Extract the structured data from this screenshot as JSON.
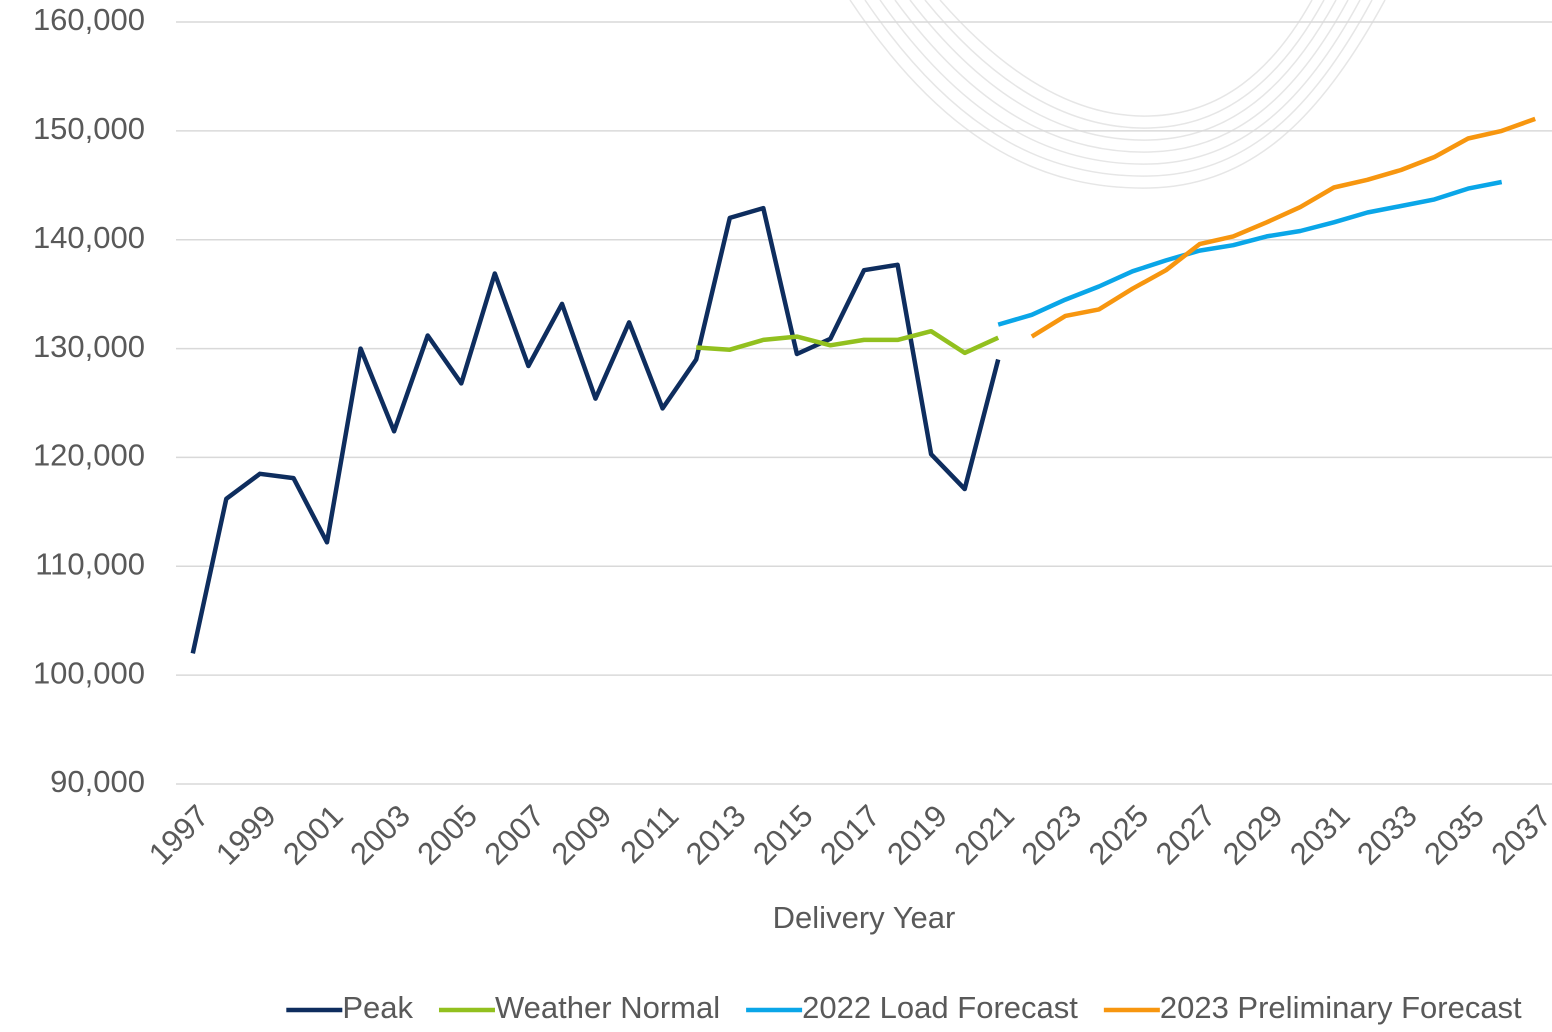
{
  "chart_data": {
    "type": "line",
    "x_label": "Delivery Year",
    "x": [
      1997,
      1998,
      1999,
      2000,
      2001,
      2002,
      2003,
      2004,
      2005,
      2006,
      2007,
      2008,
      2009,
      2010,
      2011,
      2012,
      2013,
      2014,
      2015,
      2016,
      2017,
      2018,
      2019,
      2020,
      2021,
      2022,
      2023,
      2024,
      2025,
      2026,
      2027,
      2028,
      2029,
      2030,
      2031,
      2032,
      2033,
      2034,
      2035,
      2036,
      2037
    ],
    "xlim": [
      1996.5,
      2037.5
    ],
    "xticks": [
      1997,
      1999,
      2001,
      2003,
      2005,
      2007,
      2009,
      2011,
      2013,
      2015,
      2017,
      2019,
      2021,
      2023,
      2025,
      2027,
      2029,
      2031,
      2033,
      2035,
      2037
    ],
    "ylim": [
      90000,
      160000
    ],
    "yticks": [
      {
        "value": 90000,
        "label": "90,000"
      },
      {
        "value": 100000,
        "label": "100,000"
      },
      {
        "value": 110000,
        "label": "110,000"
      },
      {
        "value": 120000,
        "label": "120,000"
      },
      {
        "value": 130000,
        "label": "130,000"
      },
      {
        "value": 140000,
        "label": "140,000"
      },
      {
        "value": 150000,
        "label": "150,000"
      },
      {
        "value": 160000,
        "label": "160,000"
      }
    ],
    "grid": true,
    "legend": "bottom",
    "series": [
      {
        "name": "Peak",
        "color": "#0e2d5e",
        "values": [
          102000,
          116200,
          118500,
          118100,
          112200,
          130000,
          122400,
          131200,
          126800,
          136900,
          128400,
          134100,
          125400,
          132400,
          124500,
          129000,
          142000,
          142900,
          129500,
          130900,
          137200,
          137700,
          120300,
          117100,
          129000,
          null,
          null,
          null,
          null,
          null,
          null,
          null,
          null,
          null,
          null,
          null,
          null,
          null,
          null,
          null,
          null
        ]
      },
      {
        "name": "Weather Normal",
        "color": "#92c01f",
        "values": [
          null,
          null,
          null,
          null,
          null,
          null,
          null,
          null,
          null,
          null,
          null,
          null,
          null,
          null,
          null,
          130100,
          129900,
          130800,
          131100,
          130300,
          130800,
          130800,
          131600,
          129600,
          131000,
          null,
          null,
          null,
          null,
          null,
          null,
          null,
          null,
          null,
          null,
          null,
          null,
          null,
          null,
          null,
          null
        ]
      },
      {
        "name": "2022 Load Forecast",
        "color": "#0aa6e8",
        "values": [
          null,
          null,
          null,
          null,
          null,
          null,
          null,
          null,
          null,
          null,
          null,
          null,
          null,
          null,
          null,
          null,
          null,
          null,
          null,
          null,
          null,
          null,
          null,
          null,
          132200,
          133100,
          134500,
          135700,
          137100,
          138100,
          139000,
          139500,
          140300,
          140800,
          141600,
          142500,
          143100,
          143700,
          144700,
          145300,
          null
        ]
      },
      {
        "name": "2023 Preliminary Forecast",
        "color": "#f7960f",
        "values": [
          null,
          null,
          null,
          null,
          null,
          null,
          null,
          null,
          null,
          null,
          null,
          null,
          null,
          null,
          null,
          null,
          null,
          null,
          null,
          null,
          null,
          null,
          null,
          null,
          null,
          131100,
          133000,
          133600,
          135500,
          137200,
          139600,
          140300,
          141600,
          143000,
          144800,
          145500,
          146400,
          147600,
          149300,
          150000,
          151100
        ]
      }
    ]
  }
}
